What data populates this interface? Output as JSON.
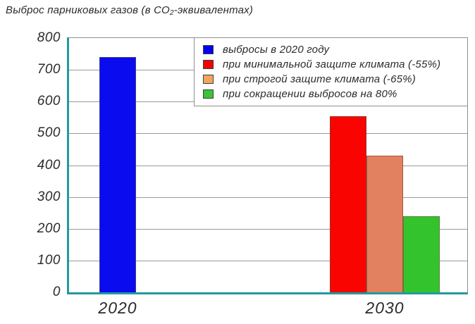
{
  "chart_data": {
    "type": "bar",
    "title": "Выброс парниковых газов (в СО₂-эквивалентах)",
    "xlabel": "",
    "ylabel": "",
    "ylim": [
      0,
      800
    ],
    "yticks": [
      0,
      100,
      200,
      300,
      400,
      500,
      600,
      700,
      800
    ],
    "grid": true,
    "legend_position": "top-right",
    "categories": [
      "2020",
      "2030"
    ],
    "series": [
      {
        "name": "выбросы в 2020 году",
        "category": "2020",
        "value": 740,
        "color": "#0b0bf0",
        "border_color": "#3c4079",
        "legend_color": "#0000f0"
      },
      {
        "name": "при минимальной защите климата (-55%)",
        "category": "2030",
        "value": 555,
        "color": "#f90400",
        "border_color": "#96352a",
        "legend_color": "#f40000"
      },
      {
        "name": "при строгой защите климата (-65%)",
        "category": "2030",
        "value": 430,
        "color": "#e28160",
        "border_color": "#a65639",
        "legend_color": "#f3a45d"
      },
      {
        "name": "при сокращении выбросов на 80%",
        "category": "2030",
        "value": 240,
        "color": "#33c42d",
        "border_color": "#567f3e",
        "legend_color": "#3cc437"
      }
    ],
    "colors": {
      "axis": "#229a9d",
      "grid": "#9a9a9a",
      "frame": "#8f8f8f",
      "text": "#2b2b2b"
    }
  }
}
